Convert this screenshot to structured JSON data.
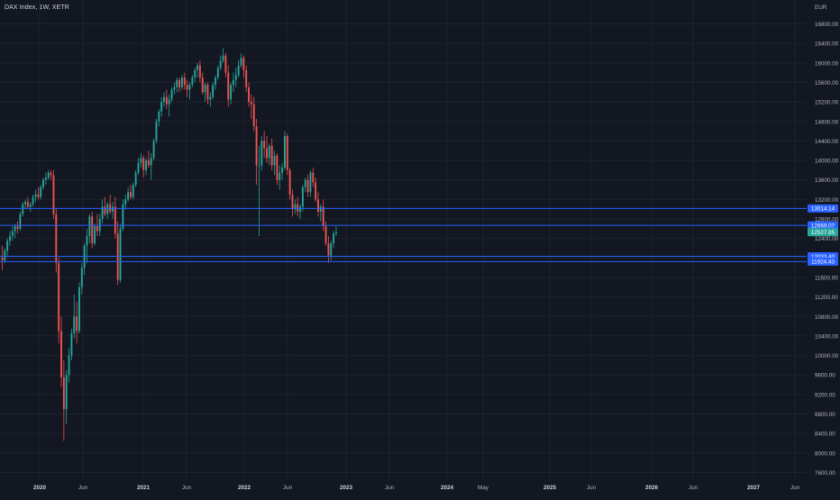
{
  "header": {
    "title": "DAX Index, 1W, XETR"
  },
  "colors": {
    "background": "#131722",
    "grid": "#1e222d",
    "up": "#26a69a",
    "down": "#ef5350",
    "hline": "#2962ff",
    "axis_text": "#b2b5be",
    "current_price_badge": "#26a69a",
    "level_badge": "#2962ff"
  },
  "chart_data": {
    "type": "candlestick",
    "title": "DAX Index, 1W, XETR",
    "currency_label": "EUR",
    "ylim": [
      7400,
      17000
    ],
    "y_ticks": [
      "16800.00",
      "16400.00",
      "16000.00",
      "15600.00",
      "15200.00",
      "14800.00",
      "14400.00",
      "14000.00",
      "13600.00",
      "13200.00",
      "12800.00",
      "12400.00",
      "12000.00",
      "11600.00",
      "11200.00",
      "10800.00",
      "10400.00",
      "10000.00",
      "9600.00",
      "9200.00",
      "8800.00",
      "8400.00",
      "8000.00",
      "7600.00"
    ],
    "x_ticks": [
      "2020",
      "Jun",
      "2021",
      "Jun",
      "2022",
      "Jun",
      "2023",
      "Jun",
      "2024",
      "May",
      "2025",
      "Jun",
      "2026",
      "Jun",
      "2027",
      "Jun"
    ],
    "x_ticks_bold": [
      "2020",
      "2021",
      "2022",
      "2023",
      "2024",
      "2025",
      "2026",
      "2027"
    ],
    "horizontal_levels": [
      {
        "value": 13014.14,
        "label": "13014.14"
      },
      {
        "value": 12669.07,
        "label": "12669.07"
      },
      {
        "value": 12033.4,
        "label": "12033.40"
      },
      {
        "value": 11924.43,
        "label": "11924.43"
      }
    ],
    "current_price": {
      "value": 12527.85,
      "label": "12527.85"
    },
    "candles": [
      [
        12000,
        12250,
        11750,
        11950
      ],
      [
        11950,
        12200,
        11900,
        12150
      ],
      [
        12150,
        12400,
        12050,
        12350
      ],
      [
        12350,
        12550,
        12250,
        12450
      ],
      [
        12450,
        12650,
        12350,
        12550
      ],
      [
        12550,
        12700,
        12400,
        12650
      ],
      [
        12650,
        12750,
        12500,
        12600
      ],
      [
        12600,
        12950,
        12550,
        12900
      ],
      [
        12900,
        13150,
        12850,
        13100
      ],
      [
        13100,
        13200,
        13000,
        13150
      ],
      [
        13150,
        13250,
        13000,
        13050
      ],
      [
        13050,
        13150,
        12950,
        13100
      ],
      [
        13100,
        13300,
        13050,
        13250
      ],
      [
        13250,
        13400,
        13150,
        13300
      ],
      [
        13300,
        13450,
        13200,
        13250
      ],
      [
        13250,
        13500,
        13200,
        13450
      ],
      [
        13450,
        13650,
        13400,
        13600
      ],
      [
        13600,
        13750,
        13500,
        13650
      ],
      [
        13650,
        13800,
        13600,
        13750
      ],
      [
        13750,
        13800,
        13600,
        13700
      ],
      [
        13700,
        13800,
        12800,
        12900
      ],
      [
        12900,
        13000,
        11700,
        11900
      ],
      [
        11900,
        12000,
        10250,
        10500
      ],
      [
        10500,
        10800,
        9350,
        9550
      ],
      [
        9550,
        9900,
        8250,
        8900
      ],
      [
        8900,
        9700,
        8600,
        9600
      ],
      [
        9600,
        10150,
        9450,
        10000
      ],
      [
        10000,
        10550,
        9900,
        10450
      ],
      [
        10450,
        11250,
        10350,
        10800
      ],
      [
        10800,
        11100,
        10250,
        10500
      ],
      [
        10500,
        11500,
        10450,
        11400
      ],
      [
        11400,
        11900,
        11250,
        11800
      ],
      [
        11800,
        12300,
        11650,
        12250
      ],
      [
        12250,
        12600,
        11900,
        12450
      ],
      [
        12450,
        12900,
        12300,
        12850
      ],
      [
        12850,
        12950,
        12200,
        12300
      ],
      [
        12300,
        12700,
        12250,
        12650
      ],
      [
        12650,
        12900,
        12450,
        12550
      ],
      [
        12550,
        12900,
        12450,
        12800
      ],
      [
        12800,
        13200,
        12700,
        13050
      ],
      [
        13050,
        13250,
        12850,
        12900
      ],
      [
        12900,
        13150,
        12800,
        13100
      ],
      [
        13100,
        13300,
        12900,
        12950
      ],
      [
        12950,
        13150,
        12800,
        13050
      ],
      [
        13050,
        13250,
        12400,
        12500
      ],
      [
        12500,
        12750,
        11450,
        11550
      ],
      [
        11550,
        12700,
        11500,
        12600
      ],
      [
        12600,
        13200,
        12550,
        13100
      ],
      [
        13100,
        13300,
        13000,
        13200
      ],
      [
        13200,
        13450,
        13150,
        13350
      ],
      [
        13350,
        13500,
        13200,
        13250
      ],
      [
        13250,
        13550,
        13200,
        13500
      ],
      [
        13500,
        13800,
        13450,
        13750
      ],
      [
        13750,
        14050,
        13700,
        13950
      ],
      [
        13950,
        14150,
        13850,
        14050
      ],
      [
        14050,
        14100,
        13650,
        13800
      ],
      [
        13800,
        14050,
        13700,
        14000
      ],
      [
        14000,
        14200,
        13850,
        13900
      ],
      [
        13900,
        14150,
        13600,
        14050
      ],
      [
        14050,
        14450,
        14000,
        14400
      ],
      [
        14400,
        14850,
        14350,
        14800
      ],
      [
        14800,
        15050,
        14700,
        15000
      ],
      [
        15000,
        15300,
        14900,
        15200
      ],
      [
        15200,
        15400,
        15100,
        15300
      ],
      [
        15300,
        15450,
        15050,
        15150
      ],
      [
        15150,
        15350,
        14900,
        15250
      ],
      [
        15250,
        15500,
        15200,
        15450
      ],
      [
        15450,
        15600,
        15350,
        15500
      ],
      [
        15500,
        15700,
        15400,
        15650
      ],
      [
        15650,
        15700,
        15400,
        15500
      ],
      [
        15500,
        15750,
        15450,
        15700
      ],
      [
        15700,
        15800,
        15450,
        15550
      ],
      [
        15550,
        15650,
        15300,
        15450
      ],
      [
        15450,
        15600,
        15250,
        15550
      ],
      [
        15550,
        15750,
        15500,
        15700
      ],
      [
        15700,
        15900,
        15600,
        15850
      ],
      [
        15850,
        16000,
        15700,
        15950
      ],
      [
        15950,
        16050,
        15600,
        15700
      ],
      [
        15700,
        15800,
        15350,
        15400
      ],
      [
        15400,
        15600,
        15200,
        15550
      ],
      [
        15550,
        15600,
        15150,
        15250
      ],
      [
        15250,
        15400,
        15100,
        15300
      ],
      [
        15300,
        15600,
        15250,
        15550
      ],
      [
        15550,
        15750,
        15450,
        15700
      ],
      [
        15700,
        15950,
        15650,
        15900
      ],
      [
        15900,
        16150,
        15850,
        16050
      ],
      [
        16050,
        16300,
        16000,
        16150
      ],
      [
        16150,
        16200,
        15700,
        15800
      ],
      [
        15800,
        15950,
        15100,
        15250
      ],
      [
        15250,
        15600,
        15150,
        15550
      ],
      [
        15550,
        15800,
        15400,
        15650
      ],
      [
        15650,
        15900,
        15500,
        15750
      ],
      [
        15750,
        16050,
        15700,
        15950
      ],
      [
        15950,
        16200,
        15900,
        16100
      ],
      [
        16100,
        16150,
        15700,
        15850
      ],
      [
        15850,
        15950,
        15400,
        15500
      ],
      [
        15500,
        15600,
        15100,
        15200
      ],
      [
        15200,
        15350,
        14850,
        15150
      ],
      [
        15150,
        15300,
        14600,
        14700
      ],
      [
        14700,
        14850,
        13500,
        13900
      ],
      [
        13900,
        14300,
        12450,
        13900
      ],
      [
        13900,
        14500,
        13800,
        14400
      ],
      [
        14400,
        14600,
        14050,
        14250
      ],
      [
        14250,
        14500,
        13950,
        14050
      ],
      [
        14050,
        14350,
        13900,
        14300
      ],
      [
        14300,
        14450,
        13800,
        13900
      ],
      [
        13900,
        14200,
        13700,
        14100
      ],
      [
        14100,
        14150,
        13500,
        13600
      ],
      [
        13600,
        13900,
        13400,
        13750
      ],
      [
        13750,
        13950,
        13600,
        13850
      ],
      [
        13850,
        14600,
        13800,
        14500
      ],
      [
        14500,
        14550,
        13700,
        13800
      ],
      [
        13800,
        13850,
        13200,
        13300
      ],
      [
        13300,
        13400,
        12850,
        13000
      ],
      [
        13000,
        13200,
        12900,
        13100
      ],
      [
        13100,
        13250,
        12850,
        12950
      ],
      [
        12950,
        13100,
        12800,
        13050
      ],
      [
        13050,
        13500,
        12950,
        13450
      ],
      [
        13450,
        13650,
        13350,
        13600
      ],
      [
        13600,
        13700,
        13250,
        13350
      ],
      [
        13350,
        13800,
        13250,
        13750
      ],
      [
        13750,
        13850,
        13450,
        13550
      ],
      [
        13550,
        13650,
        13150,
        13200
      ],
      [
        13200,
        13350,
        12850,
        12950
      ],
      [
        12950,
        13100,
        12750,
        13050
      ],
      [
        13050,
        13200,
        12550,
        12650
      ],
      [
        12650,
        12750,
        12250,
        12300
      ],
      [
        12300,
        12450,
        11900,
        12050
      ],
      [
        12050,
        12350,
        11950,
        12300
      ],
      [
        12300,
        12550,
        12200,
        12500
      ],
      [
        12500,
        12650,
        12450,
        12528
      ]
    ]
  }
}
